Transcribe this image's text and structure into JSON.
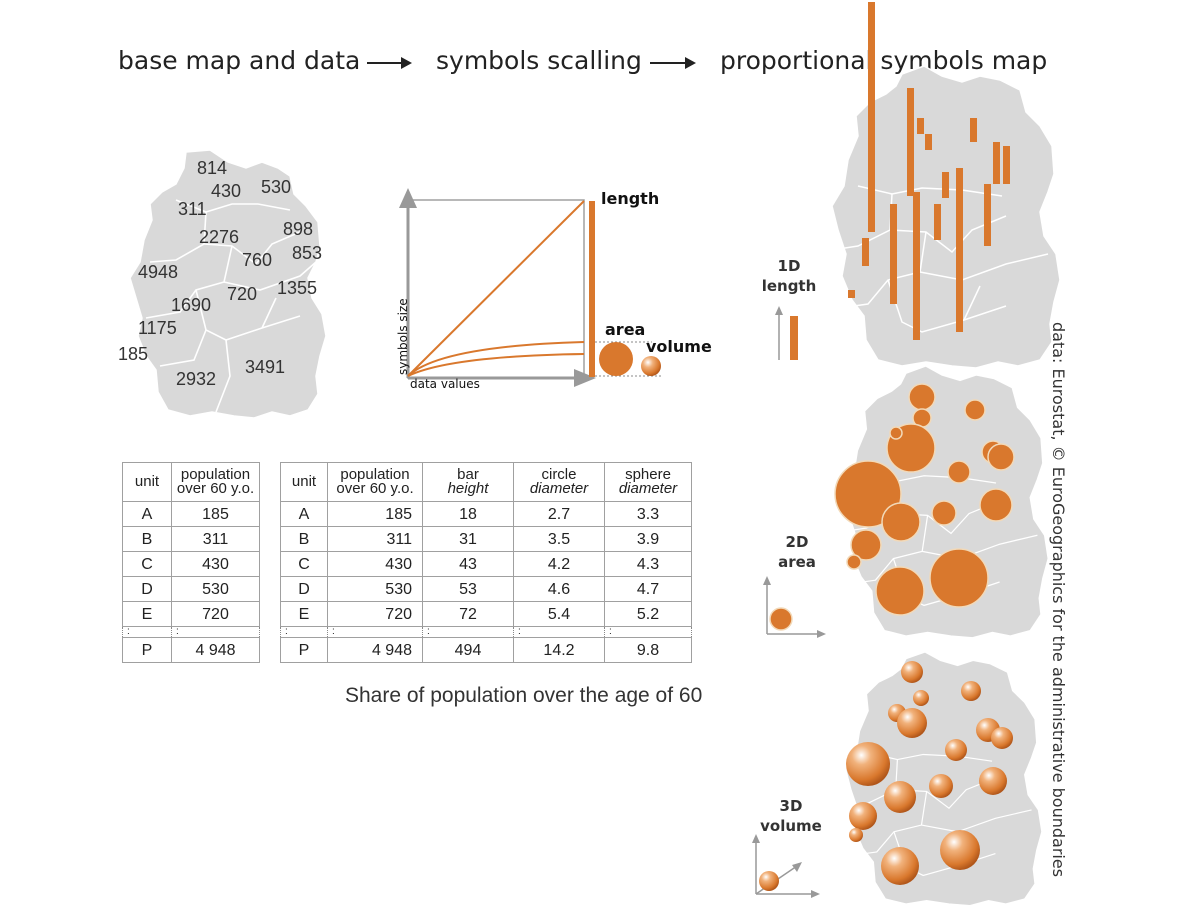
{
  "flow": {
    "step1": "base map and data",
    "step2": "symbols scalling",
    "step3": "proportional  symbols map"
  },
  "base_map": {
    "labels": [
      "814",
      "430",
      "530",
      "311",
      "898",
      "2276",
      "853",
      "760",
      "4948",
      "1355",
      "720",
      "1690",
      "1175",
      "185",
      "3491",
      "2932"
    ]
  },
  "scaling": {
    "y_axis_label": "symbols size",
    "x_axis_label": "data values",
    "length_label": "length",
    "area_label": "area",
    "volume_label": "volume"
  },
  "table1": {
    "headers": {
      "unit": "unit",
      "pop_line1": "population",
      "pop_line2": "over 60 y.o."
    },
    "rows": [
      {
        "unit": "A",
        "pop": "185"
      },
      {
        "unit": "B",
        "pop": "311"
      },
      {
        "unit": "C",
        "pop": "430"
      },
      {
        "unit": "D",
        "pop": "530"
      },
      {
        "unit": "E",
        "pop": "720"
      }
    ],
    "dots": ":",
    "last": {
      "unit": "P",
      "pop": "4 948"
    }
  },
  "table2": {
    "headers": {
      "unit": "unit",
      "pop_line1": "population",
      "pop_line2": "over 60 y.o.",
      "bar_line1": "bar",
      "bar_line2": "height",
      "circle_line1": "circle",
      "circle_line2": "diameter",
      "sphere_line1": "sphere",
      "sphere_line2": "diameter"
    },
    "rows": [
      {
        "unit": "A",
        "pop": "185",
        "bar": "18",
        "circle": "2.7",
        "sphere": "3.3"
      },
      {
        "unit": "B",
        "pop": "311",
        "bar": "31",
        "circle": "3.5",
        "sphere": "3.9"
      },
      {
        "unit": "C",
        "pop": "430",
        "bar": "43",
        "circle": "4.2",
        "sphere": "4.3"
      },
      {
        "unit": "D",
        "pop": "530",
        "bar": "53",
        "circle": "4.6",
        "sphere": "4.7"
      },
      {
        "unit": "E",
        "pop": "720",
        "bar": "72",
        "circle": "5.4",
        "sphere": "5.2"
      }
    ],
    "dots": ":",
    "last": {
      "unit": "P",
      "pop": "4 948",
      "bar": "494",
      "circle": "14.2",
      "sphere": "9.8"
    }
  },
  "caption": "Share of population over the age of 60",
  "legend": {
    "one_d_line1": "1D",
    "one_d_line2": "length",
    "two_d_line1": "2D",
    "two_d_line2": "area",
    "three_d_line1": "3D",
    "three_d_line2": "volume"
  },
  "credit": "data: Eurostat, © EuroGeographics for the administrative boundaries",
  "colors": {
    "accent": "#d9782d",
    "map_fill": "#d9d9d9",
    "border": "#ffffff",
    "axis": "#999999"
  }
}
